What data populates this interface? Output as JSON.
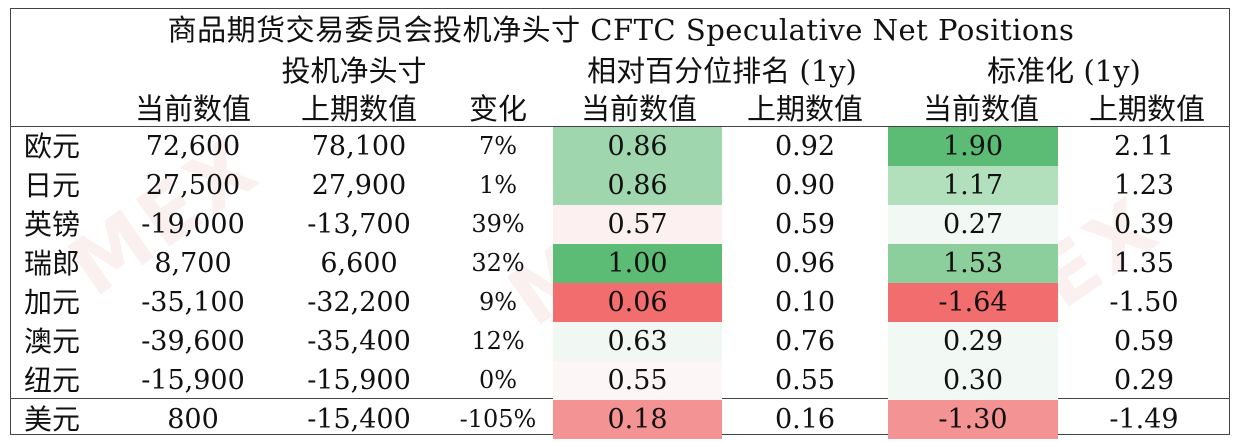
{
  "title": "商品期货交易委员会投机净头寸 CFTC Speculative Net Positions",
  "groups": {
    "net": "投机净头寸",
    "rank": "相对百分位排名 (1y)",
    "std": "标准化 (1y)"
  },
  "headers": {
    "net_cur": "当前数值",
    "net_prev": "上期数值",
    "change": "变化",
    "rank_cur": "当前数值",
    "rank_prev": "上期数值",
    "std_cur": "当前数值",
    "std_prev": "上期数值"
  },
  "colors": {
    "strong_green": "#5cbb75",
    "mid_green": "#8ccf9c",
    "light_green": "#a9dcb5",
    "pale_green": "#e6f4ea",
    "strong_red": "#f26d6d",
    "light_red": "#f59a9a",
    "pale_red": "#fbe3e3"
  },
  "rows": [
    {
      "name": "欧元",
      "net_cur": "72,600",
      "net_prev": "78,100",
      "change": "7%",
      "rank_cur": "0.86",
      "rank_prev": "0.92",
      "std_cur": "1.90",
      "std_prev": "2.11",
      "rank_bg": "#9fd6ad",
      "std_bg": "#5cbb75"
    },
    {
      "name": "日元",
      "net_cur": "27,500",
      "net_prev": "27,900",
      "change": "1%",
      "rank_cur": "0.86",
      "rank_prev": "0.90",
      "std_cur": "1.17",
      "std_prev": "1.23",
      "rank_bg": "#9fd6ad",
      "std_bg": "#b2e0bd"
    },
    {
      "name": "英镑",
      "net_cur": "-19,000",
      "net_prev": "-13,700",
      "change": "39%",
      "rank_cur": "0.57",
      "rank_prev": "0.59",
      "std_cur": "0.27",
      "std_prev": "0.39",
      "rank_bg": "#fcf0f0",
      "std_bg": "#f2f9f4"
    },
    {
      "name": "瑞郎",
      "net_cur": "8,700",
      "net_prev": "6,600",
      "change": "32%",
      "rank_cur": "1.00",
      "rank_prev": "0.96",
      "std_cur": "1.53",
      "std_prev": "1.35",
      "rank_bg": "#5cbb75",
      "std_bg": "#8ccf9c"
    },
    {
      "name": "加元",
      "net_cur": "-35,100",
      "net_prev": "-32,200",
      "change": "9%",
      "rank_cur": "0.06",
      "rank_prev": "0.10",
      "std_cur": "-1.64",
      "std_prev": "-1.50",
      "rank_bg": "#f26d6d",
      "std_bg": "#f26d6d"
    },
    {
      "name": "澳元",
      "net_cur": "-39,600",
      "net_prev": "-35,400",
      "change": "12%",
      "rank_cur": "0.63",
      "rank_prev": "0.76",
      "std_cur": "0.29",
      "std_prev": "0.59",
      "rank_bg": "#f1f8f3",
      "std_bg": "#f2f9f4"
    },
    {
      "name": "纽元",
      "net_cur": "-15,900",
      "net_prev": "-15,900",
      "change": "0%",
      "rank_cur": "0.55",
      "rank_prev": "0.55",
      "std_cur": "0.30",
      "std_prev": "0.29",
      "rank_bg": "#fdf6f6",
      "std_bg": "#f2f9f4"
    },
    {
      "name": "美元",
      "net_cur": "800",
      "net_prev": "-15,400",
      "change": "-105%",
      "rank_cur": "0.18",
      "rank_prev": "0.16",
      "std_cur": "-1.30",
      "std_prev": "-1.49",
      "rank_bg": "#f49393",
      "std_bg": "#f49393"
    }
  ]
}
